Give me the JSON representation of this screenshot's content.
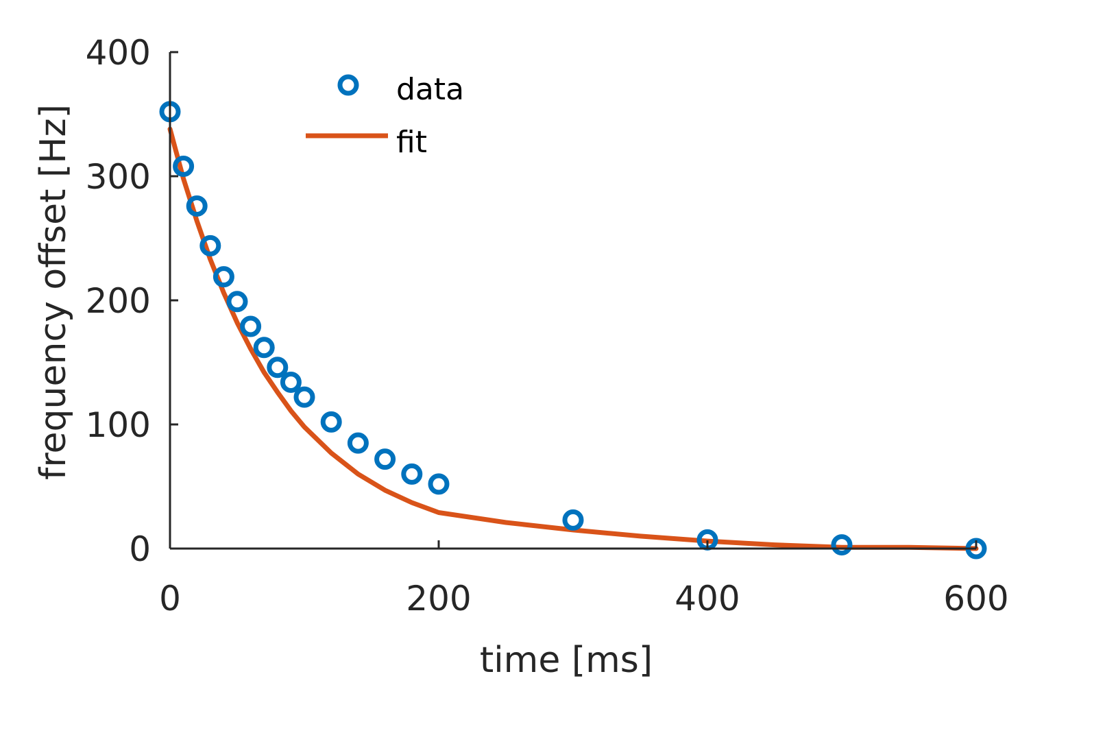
{
  "chart_data": {
    "type": "scatter",
    "title": "",
    "xlabel": "time [ms]",
    "ylabel": "frequency offset [Hz]",
    "xlim": [
      0,
      600
    ],
    "ylim": [
      0,
      400
    ],
    "xticks": [
      0,
      200,
      400,
      600
    ],
    "yticks": [
      0,
      100,
      200,
      300,
      400
    ],
    "grid": false,
    "legend_position": "top-left",
    "colors": {
      "data": "#0072bd",
      "fit": "#d95319",
      "axis": "#262626"
    },
    "series": [
      {
        "name": "data",
        "kind": "markers",
        "marker": "circle-open",
        "x": [
          0,
          10,
          20,
          30,
          40,
          50,
          60,
          70,
          80,
          90,
          100,
          120,
          140,
          160,
          180,
          200,
          300,
          400,
          500,
          600
        ],
        "y": [
          352,
          308,
          276,
          244,
          219,
          199,
          179,
          162,
          146,
          134,
          122,
          102,
          85,
          72,
          60,
          52,
          23,
          7,
          3,
          0
        ]
      },
      {
        "name": "fit",
        "kind": "line",
        "x": [
          0,
          10,
          20,
          30,
          40,
          50,
          60,
          70,
          80,
          90,
          100,
          120,
          140,
          160,
          180,
          200,
          250,
          300,
          350,
          400,
          450,
          500,
          550,
          600
        ],
        "y": [
          338,
          298,
          264,
          233,
          206,
          182,
          161,
          142,
          126,
          111,
          98,
          77,
          60,
          47,
          37,
          29,
          21,
          15,
          10,
          6,
          3,
          1,
          1,
          0
        ]
      }
    ]
  }
}
